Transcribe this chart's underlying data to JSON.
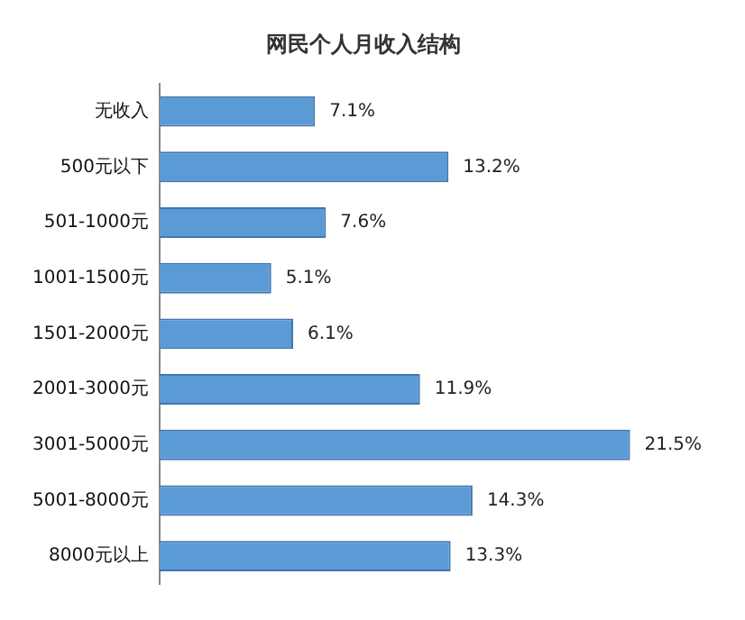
{
  "chart_data": {
    "type": "bar",
    "orientation": "horizontal",
    "title": "网民个人月收入结构",
    "categories": [
      "无收入",
      "500元以下",
      "501-1000元",
      "1001-1500元",
      "1501-2000元",
      "2001-3000元",
      "3001-5000元",
      "5001-8000元",
      "8000元以上"
    ],
    "values": [
      7.1,
      13.2,
      7.6,
      5.1,
      6.1,
      11.9,
      21.5,
      14.3,
      13.3
    ],
    "value_labels": [
      "7.1%",
      "13.2%",
      "7.6%",
      "5.1%",
      "6.1%",
      "11.9%",
      "21.5%",
      "14.3%",
      "13.3%"
    ],
    "color": "#5b9bd5",
    "grid": false,
    "legend": false
  }
}
